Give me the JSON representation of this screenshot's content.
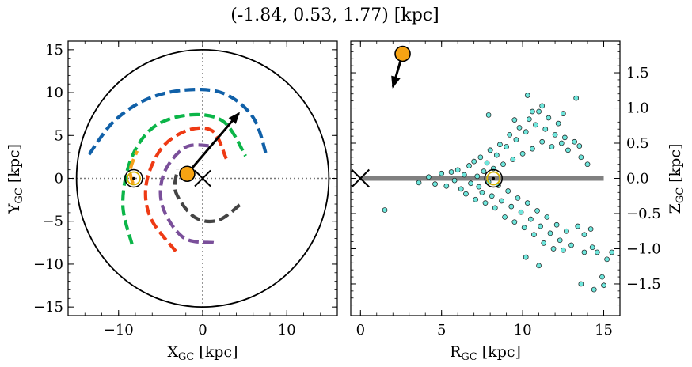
{
  "title": "(-1.84, 0.53, 1.77) [kpc]",
  "chart_data": [
    {
      "type": "line",
      "panel": "left",
      "xlabel": "X",
      "xlabel_sub": "GC",
      "xlabel_unit": " [kpc]",
      "ylabel": "Y",
      "ylabel_sub": "GC",
      "ylabel_unit": " [kpc]",
      "xlim": [
        -16,
        16
      ],
      "ylim": [
        -16,
        16
      ],
      "xticks": [
        -10,
        0,
        10
      ],
      "xtick_labels": [
        "−10",
        "0",
        "10"
      ],
      "yticks": [
        -15,
        -10,
        -5,
        0,
        5,
        10,
        15
      ],
      "ytick_labels": [
        "−15",
        "−10",
        "−5",
        "0",
        "5",
        "10",
        "15"
      ],
      "grid": false,
      "reference_lines": {
        "x": 0,
        "y": 0
      },
      "galaxy_boundary_radius": 15,
      "spiral_arms": [
        {
          "color": "#1060a8",
          "points": [
            [
              -13.5,
              2.8
            ],
            [
              -10.6,
              6.6
            ],
            [
              -6.7,
              9.2
            ],
            [
              -2.1,
              10.3
            ],
            [
              2.5,
              9.9
            ],
            [
              6.0,
              7.1
            ],
            [
              7.6,
              2.6
            ]
          ]
        },
        {
          "color": "#0bb548",
          "points": [
            [
              -8.4,
              -7.7
            ],
            [
              -9.5,
              -3.0
            ],
            [
              -8.5,
              2.3
            ],
            [
              -5.8,
              6.0
            ],
            [
              -1.5,
              7.4
            ],
            [
              2.5,
              6.6
            ],
            [
              5.1,
              2.6
            ]
          ]
        },
        {
          "color": "#f5a21c",
          "points": [
            [
              -8.3,
              -0.6
            ],
            [
              -8.6,
              1.0
            ],
            [
              -7.8,
              3.2
            ]
          ]
        },
        {
          "color": "#ee3a14",
          "points": [
            [
              -3.2,
              -8.5
            ],
            [
              -6.2,
              -4.6
            ],
            [
              -6.7,
              -0.6
            ],
            [
              -4.9,
              3.5
            ],
            [
              -1.8,
              5.6
            ],
            [
              1.2,
              5.5
            ],
            [
              2.8,
              2.3
            ]
          ]
        },
        {
          "color": "#7a4f9a",
          "points": [
            [
              1.3,
              -7.5
            ],
            [
              -2.3,
              -6.9
            ],
            [
              -4.8,
              -3.2
            ],
            [
              -4.6,
              0.6
            ],
            [
              -2.1,
              3.6
            ],
            [
              0.9,
              3.8
            ]
          ]
        },
        {
          "color": "#444444",
          "points": [
            [
              4.4,
              -3.1
            ],
            [
              1.8,
              -4.9
            ],
            [
              -1.0,
              -4.5
            ],
            [
              -3.2,
              -1.6
            ],
            [
              -3.0,
              1.0
            ]
          ]
        }
      ],
      "sun": [
        -8.2,
        0.0
      ],
      "galactic_center": [
        0,
        0
      ],
      "object": [
        -1.84,
        0.53
      ],
      "velocity_arrow": {
        "from": [
          -1.84,
          0.53
        ],
        "to": [
          4.3,
          7.6
        ]
      }
    },
    {
      "type": "scatter",
      "panel": "right",
      "xlabel": "R",
      "xlabel_sub": "GC",
      "xlabel_unit": " [kpc]",
      "ylabel": "Z",
      "ylabel_sub": "GC",
      "ylabel_unit": " [kpc]",
      "xlim": [
        -0.6,
        16
      ],
      "ylim": [
        -1.95,
        1.95
      ],
      "xticks": [
        0,
        5,
        10,
        15
      ],
      "xtick_labels": [
        "0",
        "5",
        "10",
        "15"
      ],
      "yticks": [
        -1.5,
        -1.0,
        -0.5,
        0.0,
        0.5,
        1.0,
        1.5
      ],
      "ytick_labels": [
        "−1.5",
        "−1.0",
        "−0.5",
        "0.0",
        "0.5",
        "1.0",
        "1.5"
      ],
      "ytick_side": "right",
      "grid": false,
      "disk_line": {
        "x": [
          0,
          15
        ],
        "y": 0.0
      },
      "galactic_center": [
        0,
        0
      ],
      "sun": [
        8.2,
        0.0
      ],
      "object": [
        2.6,
        1.77
      ],
      "velocity_arrow": {
        "from": [
          2.6,
          1.77
        ],
        "to": [
          2.0,
          1.3
        ]
      },
      "points": [
        [
          1.5,
          -0.45
        ],
        [
          3.6,
          -0.06
        ],
        [
          4.2,
          0.02
        ],
        [
          4.6,
          -0.08
        ],
        [
          5.0,
          0.07
        ],
        [
          5.3,
          -0.11
        ],
        [
          5.6,
          0.09
        ],
        [
          5.8,
          -0.03
        ],
        [
          6.0,
          0.12
        ],
        [
          6.2,
          -0.15
        ],
        [
          6.4,
          0.05
        ],
        [
          6.5,
          -0.22
        ],
        [
          6.7,
          0.18
        ],
        [
          6.8,
          -0.07
        ],
        [
          7.0,
          0.24
        ],
        [
          7.1,
          -0.3
        ],
        [
          7.2,
          0.03
        ],
        [
          7.3,
          -0.12
        ],
        [
          7.4,
          0.3
        ],
        [
          7.5,
          -0.2
        ],
        [
          7.6,
          0.1
        ],
        [
          7.7,
          -0.35
        ],
        [
          7.8,
          0.22
        ],
        [
          7.9,
          -0.05
        ],
        [
          8.0,
          0.4
        ],
        [
          8.1,
          -0.25
        ],
        [
          8.2,
          0.14
        ],
        [
          8.3,
          -0.42
        ],
        [
          8.4,
          0.33
        ],
        [
          8.5,
          -0.1
        ],
        [
          8.6,
          0.48
        ],
        [
          8.7,
          -0.32
        ],
        [
          8.8,
          0.2
        ],
        [
          8.9,
          -0.55
        ],
        [
          9.0,
          0.45
        ],
        [
          9.1,
          -0.18
        ],
        [
          9.2,
          0.62
        ],
        [
          9.3,
          -0.4
        ],
        [
          9.4,
          0.27
        ],
        [
          9.5,
          -0.62
        ],
        [
          9.6,
          0.55
        ],
        [
          9.7,
          -0.28
        ],
        [
          9.8,
          0.72
        ],
        [
          9.9,
          -0.48
        ],
        [
          10.0,
          0.35
        ],
        [
          10.1,
          -0.7
        ],
        [
          10.2,
          0.66
        ],
        [
          10.3,
          -0.35
        ],
        [
          10.4,
          0.84
        ],
        [
          10.5,
          -0.58
        ],
        [
          10.6,
          0.42
        ],
        [
          10.7,
          -0.8
        ],
        [
          10.8,
          0.76
        ],
        [
          10.9,
          -0.46
        ],
        [
          11.0,
          0.95
        ],
        [
          11.1,
          -0.68
        ],
        [
          11.2,
          0.52
        ],
        [
          11.3,
          -0.92
        ],
        [
          11.4,
          0.7
        ],
        [
          11.5,
          -0.55
        ],
        [
          11.6,
          0.86
        ],
        [
          11.7,
          -0.78
        ],
        [
          11.8,
          0.45
        ],
        [
          11.9,
          -1.0
        ],
        [
          12.0,
          0.62
        ],
        [
          12.1,
          -0.66
        ],
        [
          12.2,
          0.78
        ],
        [
          12.3,
          -0.88
        ],
        [
          12.4,
          0.5
        ],
        [
          12.5,
          -1.02
        ],
        [
          12.6,
          0.58
        ],
        [
          12.7,
          -0.75
        ],
        [
          12.8,
          0.4
        ],
        [
          13.0,
          -0.95
        ],
        [
          13.2,
          0.52
        ],
        [
          13.4,
          -0.68
        ],
        [
          13.6,
          0.3
        ],
        [
          13.8,
          -0.8
        ],
        [
          14.0,
          0.2
        ],
        [
          14.3,
          -0.98
        ],
        [
          14.6,
          -1.05
        ],
        [
          14.9,
          -1.4
        ],
        [
          15.2,
          -1.15
        ],
        [
          15.5,
          -1.05
        ],
        [
          10.3,
          1.18
        ],
        [
          13.3,
          1.14
        ],
        [
          10.2,
          -1.12
        ],
        [
          11.0,
          -1.24
        ],
        [
          14.4,
          -1.58
        ],
        [
          13.6,
          -1.5
        ],
        [
          15.0,
          -1.52
        ],
        [
          13.8,
          -1.05
        ],
        [
          14.2,
          -0.72
        ],
        [
          13.5,
          0.46
        ],
        [
          12.5,
          0.92
        ],
        [
          11.2,
          1.03
        ],
        [
          10.6,
          0.95
        ],
        [
          9.5,
          0.83
        ],
        [
          7.9,
          0.9
        ],
        [
          8.0,
          0.4
        ]
      ]
    }
  ]
}
